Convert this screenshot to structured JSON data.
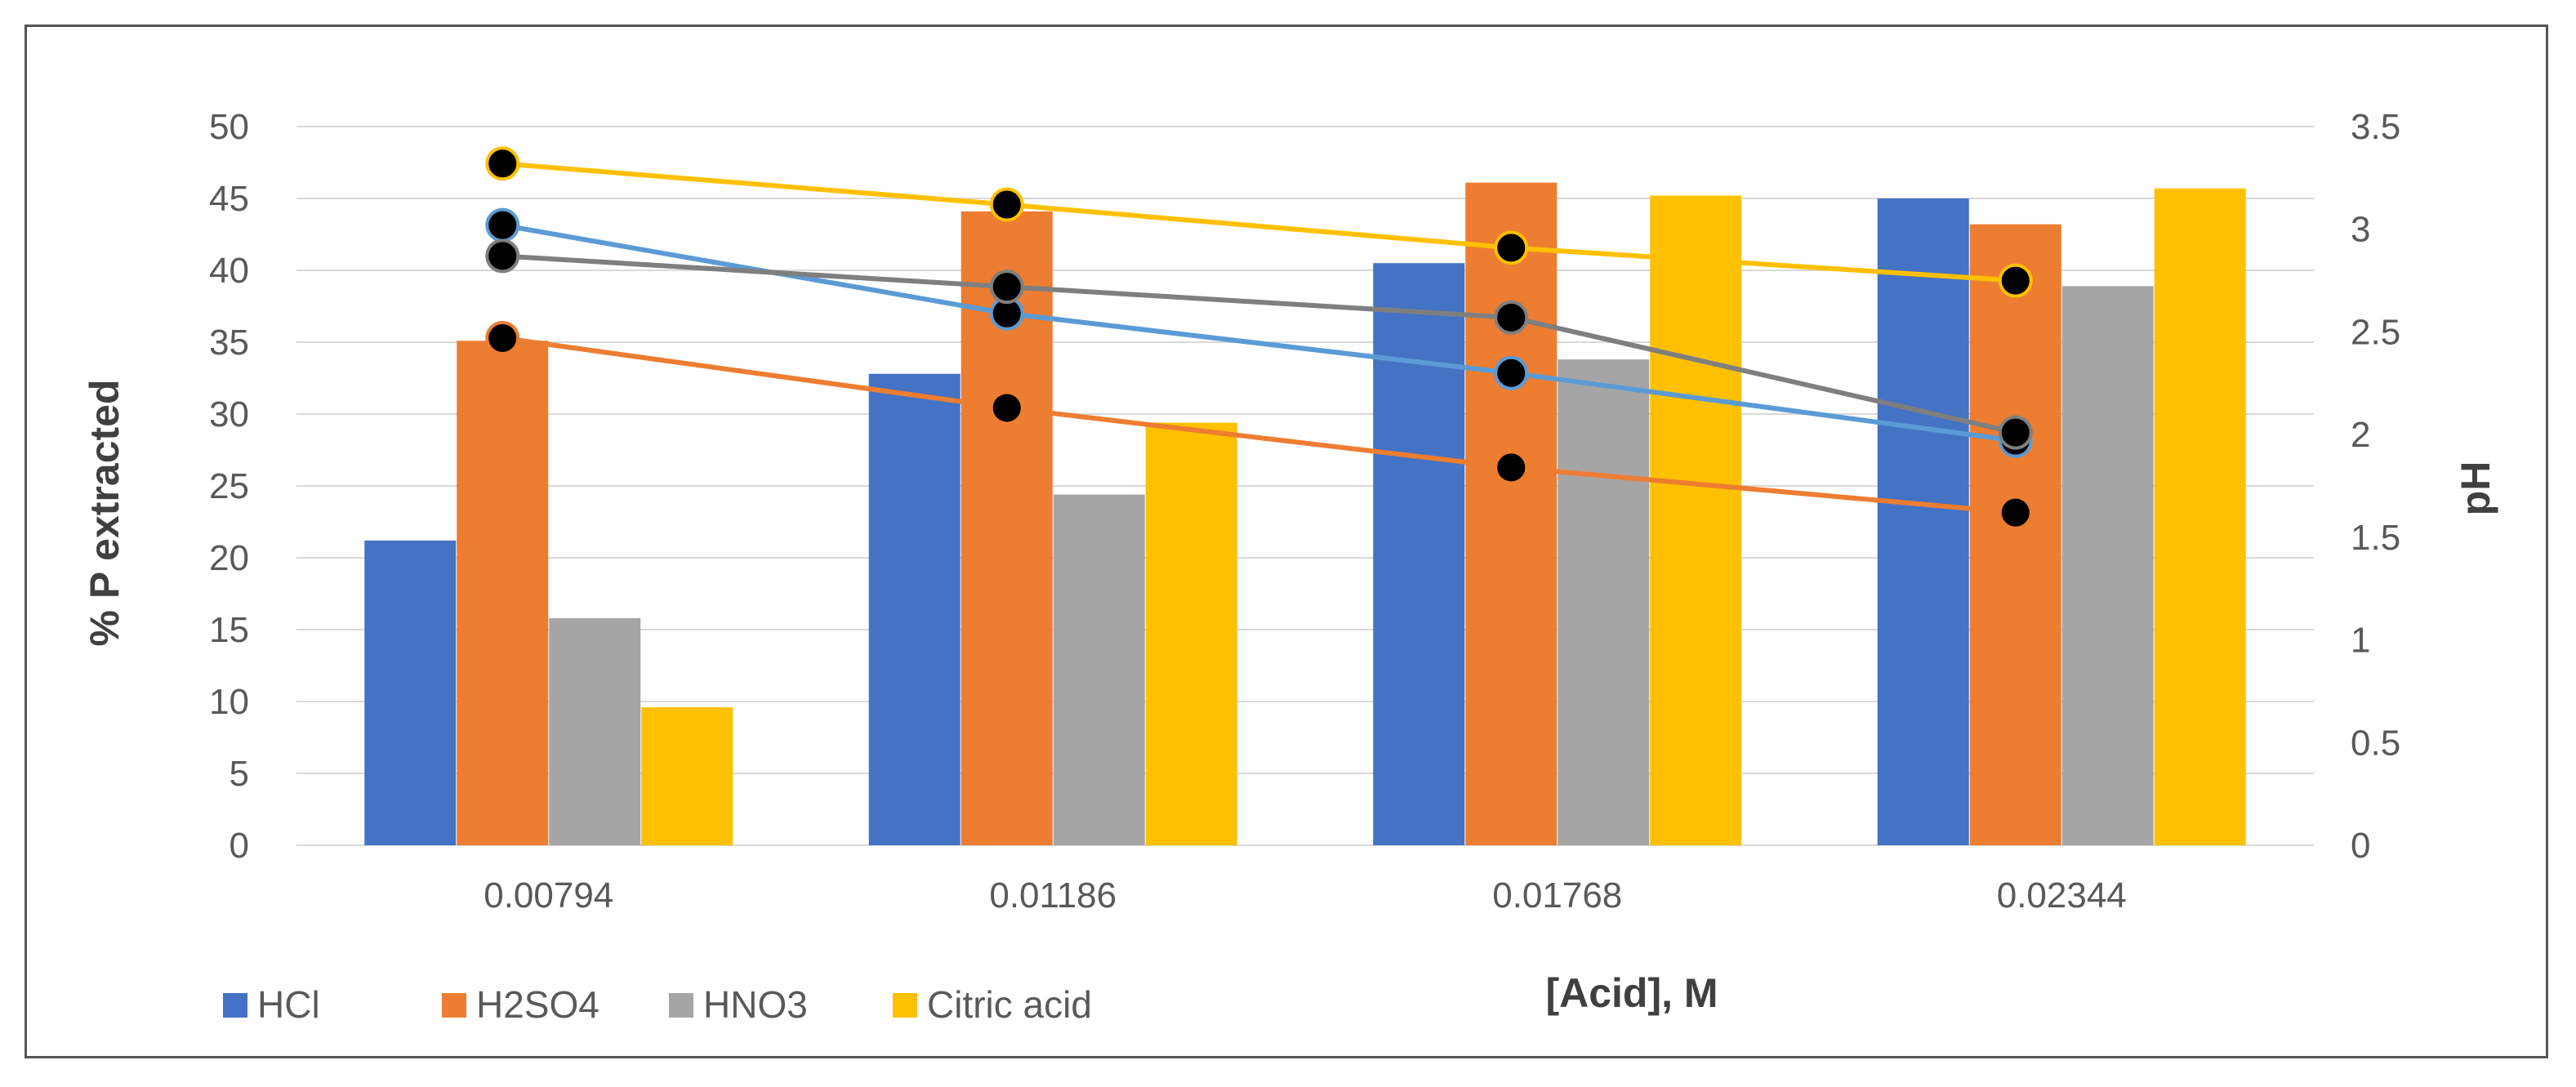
{
  "chart_data": {
    "type": "bar",
    "categories": [
      "0.00794",
      "0.01186",
      "0.01768",
      "0.02344"
    ],
    "series": [
      {
        "name": "HCl",
        "color": "#4472C4",
        "values": [
          21.2,
          32.8,
          40.5,
          45.0
        ]
      },
      {
        "name": "H2SO4",
        "color": "#ED7D31",
        "values": [
          35.1,
          44.1,
          46.1,
          43.2
        ]
      },
      {
        "name": "HNO3",
        "color": "#A5A5A5",
        "values": [
          15.8,
          24.4,
          33.8,
          38.9
        ]
      },
      {
        "name": "Citric acid",
        "color": "#FFC000",
        "values": [
          9.6,
          29.4,
          45.2,
          45.7
        ]
      }
    ],
    "ph_series": [
      {
        "name": "HCl pH",
        "color": "#5B9BD5",
        "values": [
          3.02,
          2.59,
          2.3,
          1.97
        ]
      },
      {
        "name": "H2SO4 pH",
        "color": "#ED7D31",
        "values": [
          2.47,
          2.13,
          1.84,
          1.62
        ]
      },
      {
        "name": "HNO3 pH",
        "color": "#7F7F7F",
        "values": [
          2.87,
          2.72,
          2.57,
          2.01
        ]
      },
      {
        "name": "Citric acid pH",
        "color": "#FFC000",
        "values": [
          3.32,
          3.12,
          2.91,
          2.75
        ]
      }
    ],
    "marker_color": "#000000",
    "xlabel": "[Acid], M",
    "ylabel": "% P extracted",
    "y2label": "pH",
    "ylim": [
      0,
      50
    ],
    "y2lim": [
      0,
      3.5
    ],
    "yticks": [
      "0",
      "5",
      "10",
      "15",
      "20",
      "25",
      "30",
      "35",
      "40",
      "45",
      "50"
    ],
    "y2ticks": [
      "0",
      "0.5",
      "1",
      "1.5",
      "2",
      "2.5",
      "3",
      "3.5"
    ],
    "grid": true,
    "legend_position": "bottom-left"
  }
}
